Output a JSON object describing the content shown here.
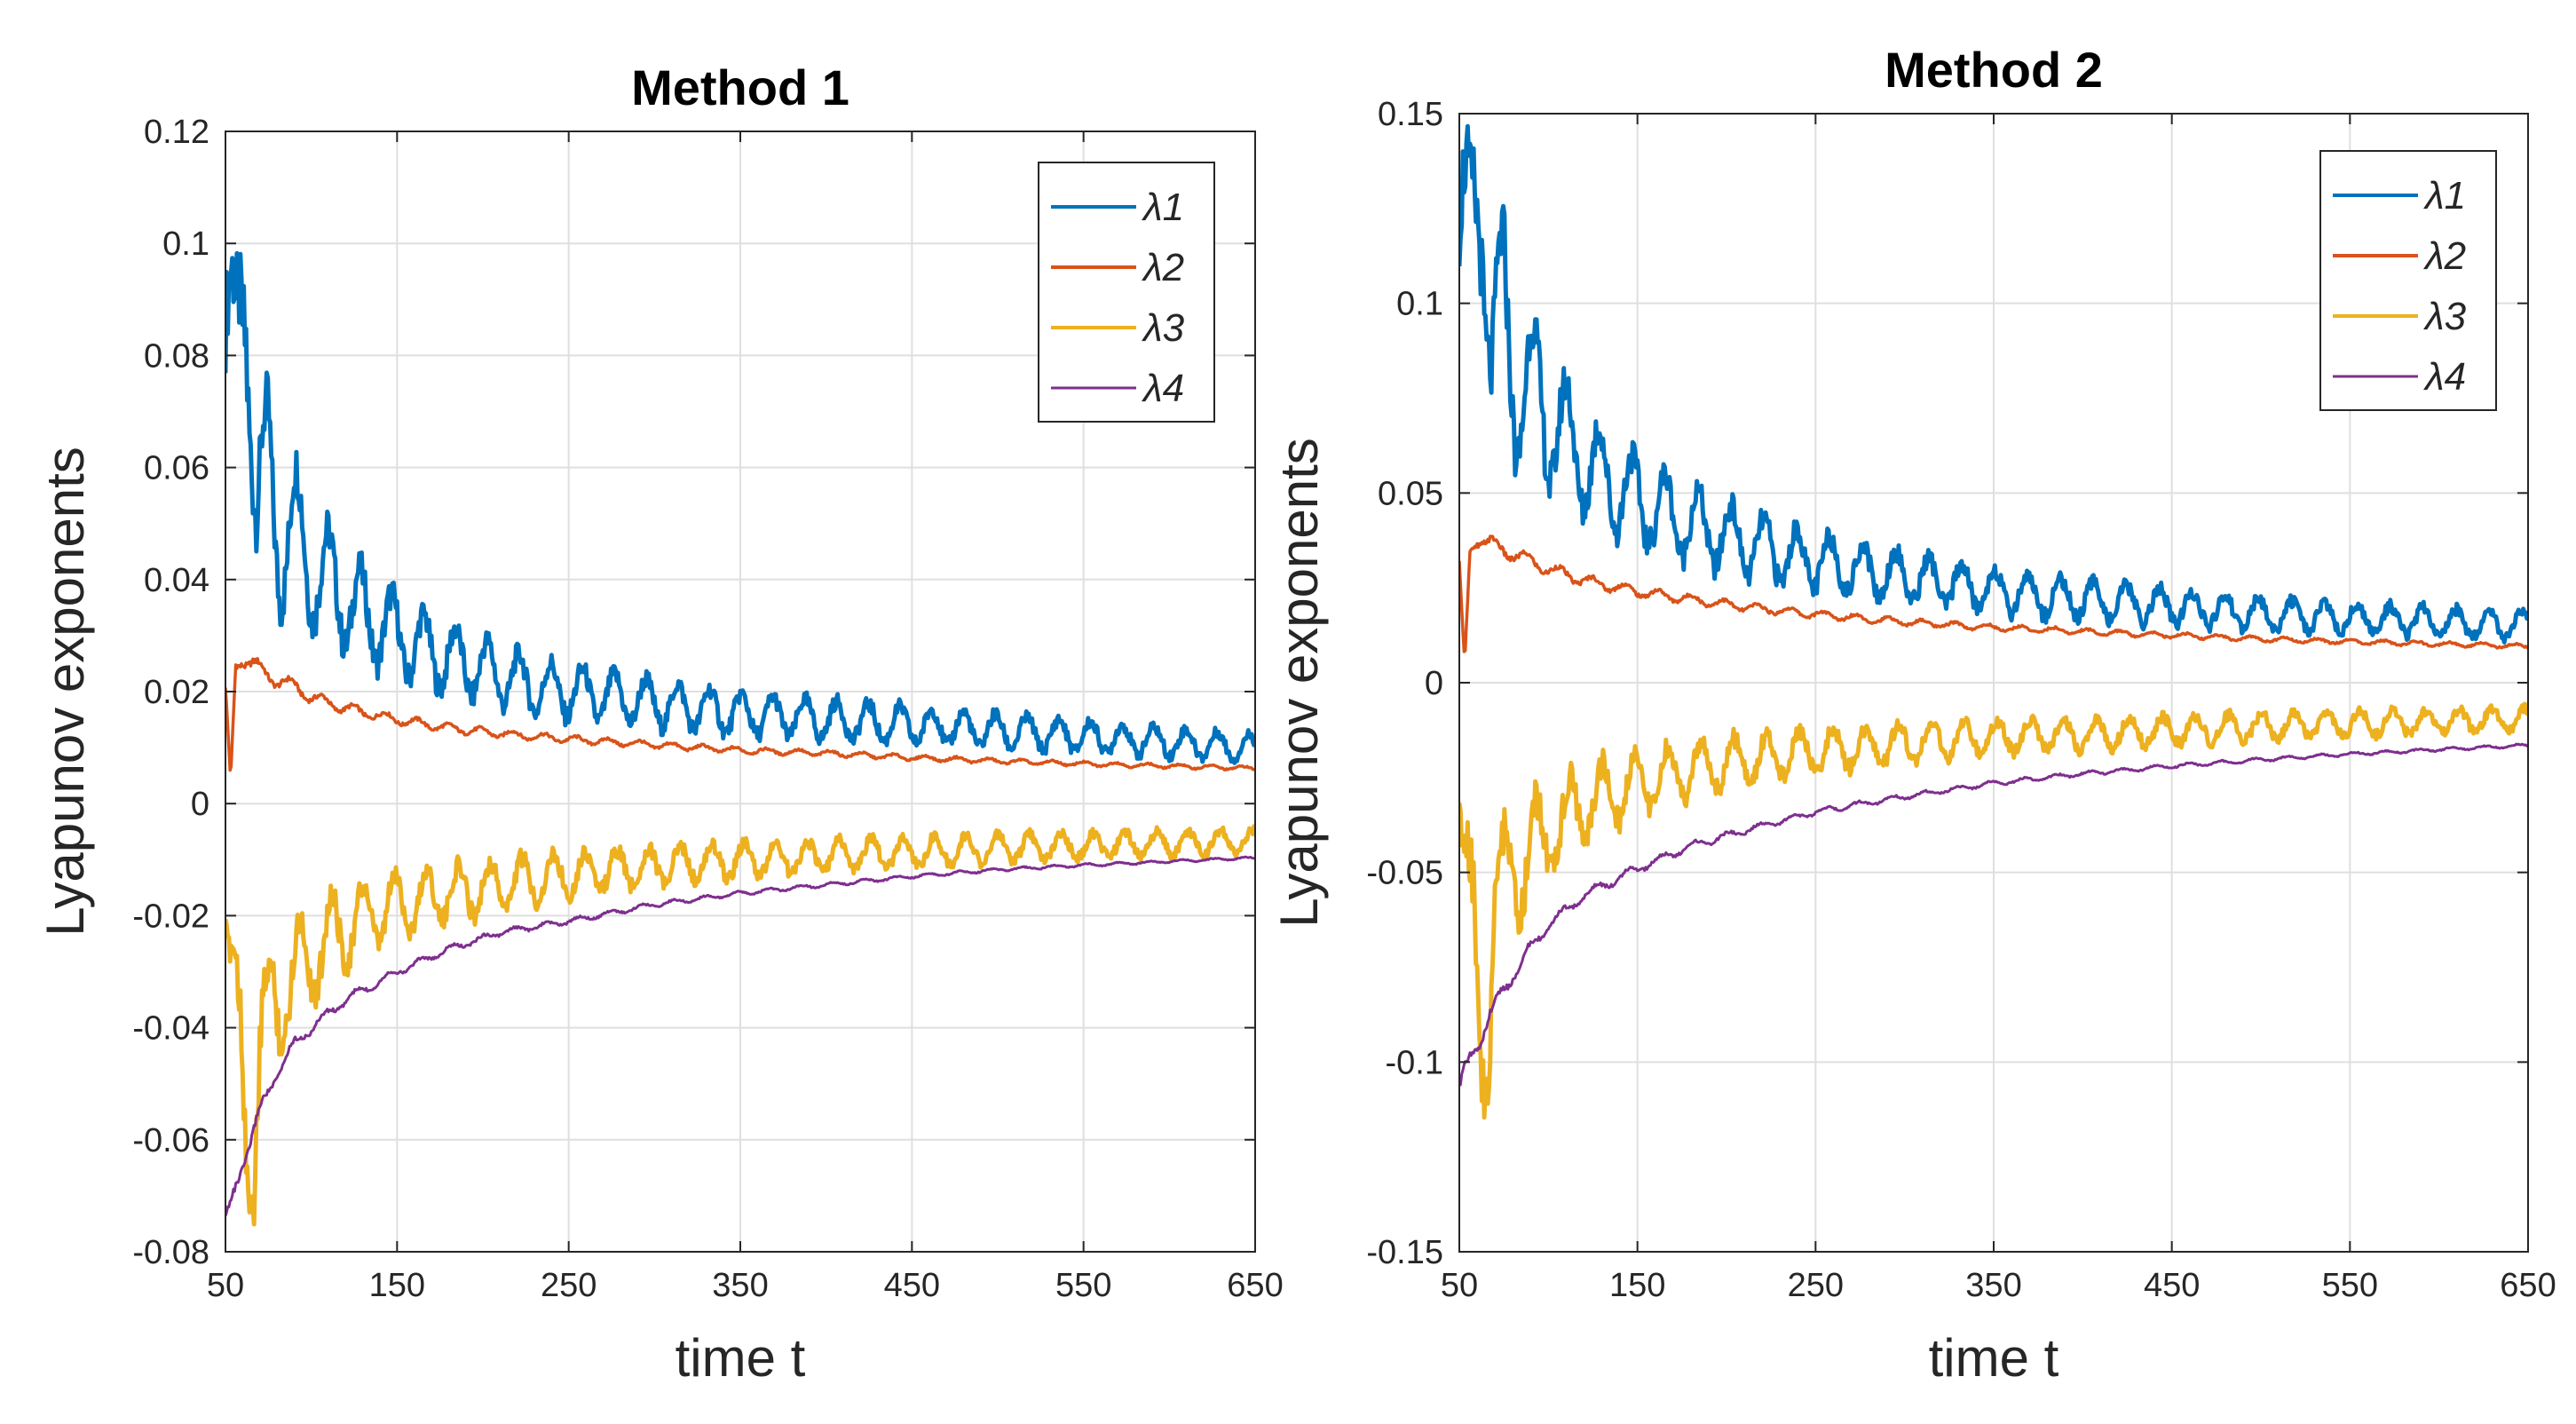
{
  "chart_data": [
    {
      "type": "line",
      "title": "Method 1",
      "xlabel": "time t",
      "ylabel": "Lyapunov exponents",
      "xlim": [
        50,
        650
      ],
      "ylim": [
        -0.08,
        0.12
      ],
      "xticks": [
        50,
        150,
        250,
        350,
        450,
        550,
        650
      ],
      "xtick_labels": [
        "50",
        "150",
        "250",
        "350",
        "450",
        "550",
        "650"
      ],
      "yticks": [
        -0.08,
        -0.06,
        -0.04,
        -0.02,
        0,
        0.02,
        0.04,
        0.06,
        0.08,
        0.1,
        0.12
      ],
      "ytick_labels": [
        "-0.08",
        "-0.06",
        "-0.04",
        "-0.02",
        "0",
        "0.02",
        "0.04",
        "0.06",
        "0.08",
        "0.1",
        "0.12"
      ],
      "grid": true,
      "legend_position": "top-right",
      "series": [
        {
          "name": "λ1",
          "color": "#0072BD",
          "x": [
            50,
            56,
            62,
            68,
            75,
            82,
            90,
            100,
            110,
            120,
            135,
            150,
            170,
            190,
            210,
            230,
            250,
            275,
            300,
            325,
            350,
            375,
            400,
            425,
            450,
            475,
            500,
            525,
            550,
            575,
            600,
            625,
            650
          ],
          "y": [
            0.085,
            0.075,
            0.1,
            0.052,
            0.06,
            0.045,
            0.05,
            0.042,
            0.04,
            0.036,
            0.033,
            0.03,
            0.027,
            0.025,
            0.023,
            0.021,
            0.02,
            0.019,
            0.018,
            0.017,
            0.016,
            0.0155,
            0.015,
            0.0145,
            0.014,
            0.0135,
            0.013,
            0.0125,
            0.012,
            0.0115,
            0.011,
            0.0105,
            0.01
          ]
        },
        {
          "name": "λ2",
          "color": "#D95319",
          "x": [
            50,
            53,
            56,
            60,
            70,
            80,
            90,
            100,
            120,
            150,
            180,
            210,
            250,
            300,
            350,
            400,
            450,
            500,
            550,
            600,
            650
          ],
          "y": [
            0.02,
            0.004,
            0.025,
            0.026,
            0.024,
            0.022,
            0.021,
            0.019,
            0.017,
            0.015,
            0.0135,
            0.0125,
            0.0115,
            0.0105,
            0.0095,
            0.009,
            0.0082,
            0.0076,
            0.0071,
            0.0067,
            0.0063
          ]
        },
        {
          "name": "λ3",
          "color": "#EDB120",
          "x": [
            50,
            55,
            60,
            65,
            70,
            80,
            90,
            100,
            110,
            120,
            135,
            150,
            170,
            190,
            210,
            230,
            250,
            275,
            300,
            325,
            350,
            375,
            400,
            425,
            450,
            475,
            500,
            525,
            550,
            575,
            600,
            625,
            650
          ],
          "y": [
            -0.02,
            -0.035,
            -0.05,
            -0.06,
            -0.045,
            -0.035,
            -0.03,
            -0.027,
            -0.024,
            -0.022,
            -0.02,
            -0.018,
            -0.0165,
            -0.0155,
            -0.0145,
            -0.0135,
            -0.0125,
            -0.0118,
            -0.0112,
            -0.0106,
            -0.0101,
            -0.0097,
            -0.0093,
            -0.0089,
            -0.0086,
            -0.0083,
            -0.008,
            -0.0077,
            -0.0075,
            -0.0073,
            -0.0071,
            -0.0069,
            -0.0067
          ]
        },
        {
          "name": "λ4",
          "color": "#7E2F8E",
          "x": [
            50,
            55,
            60,
            70,
            80,
            90,
            100,
            120,
            150,
            180,
            210,
            250,
            300,
            350,
            400,
            450,
            500,
            550,
            600,
            650
          ],
          "y": [
            -0.075,
            -0.07,
            -0.064,
            -0.055,
            -0.048,
            -0.043,
            -0.04,
            -0.035,
            -0.03,
            -0.026,
            -0.023,
            -0.021,
            -0.018,
            -0.016,
            -0.0145,
            -0.013,
            -0.0118,
            -0.011,
            -0.0103,
            -0.0097
          ]
        }
      ]
    },
    {
      "type": "line",
      "title": "Method 2",
      "xlabel": "time t",
      "ylabel": "Lyapunov exponents",
      "xlim": [
        50,
        650
      ],
      "ylim": [
        -0.15,
        0.15
      ],
      "xticks": [
        50,
        150,
        250,
        350,
        450,
        550,
        650
      ],
      "xtick_labels": [
        "50",
        "150",
        "250",
        "350",
        "450",
        "550",
        "650"
      ],
      "yticks": [
        -0.15,
        -0.1,
        -0.05,
        0,
        0.05,
        0.1,
        0.15
      ],
      "ytick_labels": [
        "-0.15",
        "-0.1",
        "-0.05",
        "0",
        "0.05",
        "0.1",
        "0.15"
      ],
      "grid": true,
      "legend_position": "top-right",
      "series": [
        {
          "name": "λ1",
          "color": "#0072BD",
          "x": [
            50,
            56,
            62,
            68,
            75,
            82,
            90,
            100,
            110,
            120,
            135,
            150,
            170,
            190,
            210,
            230,
            250,
            275,
            300,
            325,
            350,
            375,
            400,
            425,
            450,
            475,
            500,
            525,
            550,
            575,
            600,
            625,
            650
          ],
          "y": [
            0.12,
            0.11,
            0.14,
            0.085,
            0.1,
            0.075,
            0.08,
            0.068,
            0.065,
            0.058,
            0.053,
            0.048,
            0.044,
            0.04,
            0.037,
            0.034,
            0.032,
            0.03,
            0.028,
            0.026,
            0.0245,
            0.023,
            0.022,
            0.021,
            0.02,
            0.019,
            0.018,
            0.0175,
            0.017,
            0.0165,
            0.016,
            0.0155,
            0.015
          ]
        },
        {
          "name": "λ2",
          "color": "#D95319",
          "x": [
            50,
            53,
            56,
            60,
            70,
            80,
            90,
            100,
            120,
            150,
            180,
            210,
            250,
            300,
            350,
            400,
            450,
            500,
            550,
            600,
            650
          ],
          "y": [
            0.03,
            0.005,
            0.035,
            0.038,
            0.036,
            0.034,
            0.032,
            0.03,
            0.027,
            0.024,
            0.022,
            0.02,
            0.018,
            0.016,
            0.0145,
            0.0135,
            0.0125,
            0.0115,
            0.0108,
            0.0102,
            0.0096
          ]
        },
        {
          "name": "λ3",
          "color": "#EDB120",
          "x": [
            50,
            55,
            60,
            65,
            70,
            80,
            90,
            100,
            110,
            120,
            135,
            150,
            170,
            190,
            210,
            230,
            250,
            275,
            300,
            325,
            350,
            375,
            400,
            425,
            450,
            475,
            500,
            525,
            550,
            575,
            600,
            625,
            650
          ],
          "y": [
            -0.03,
            -0.06,
            -0.08,
            -0.09,
            -0.06,
            -0.05,
            -0.045,
            -0.04,
            -0.036,
            -0.032,
            -0.029,
            -0.026,
            -0.024,
            -0.022,
            -0.0205,
            -0.019,
            -0.018,
            -0.017,
            -0.016,
            -0.015,
            -0.0145,
            -0.014,
            -0.0135,
            -0.013,
            -0.0125,
            -0.012,
            -0.0116,
            -0.0112,
            -0.0108,
            -0.0105,
            -0.0102,
            -0.0099,
            -0.0096
          ]
        },
        {
          "name": "λ4",
          "color": "#7E2F8E",
          "x": [
            50,
            55,
            60,
            70,
            80,
            90,
            100,
            120,
            150,
            180,
            210,
            250,
            300,
            350,
            400,
            450,
            500,
            550,
            600,
            650
          ],
          "y": [
            -0.108,
            -0.1,
            -0.095,
            -0.085,
            -0.077,
            -0.07,
            -0.064,
            -0.056,
            -0.049,
            -0.043,
            -0.039,
            -0.034,
            -0.03,
            -0.0265,
            -0.024,
            -0.022,
            -0.0203,
            -0.0188,
            -0.0176,
            -0.0165
          ]
        }
      ]
    }
  ]
}
